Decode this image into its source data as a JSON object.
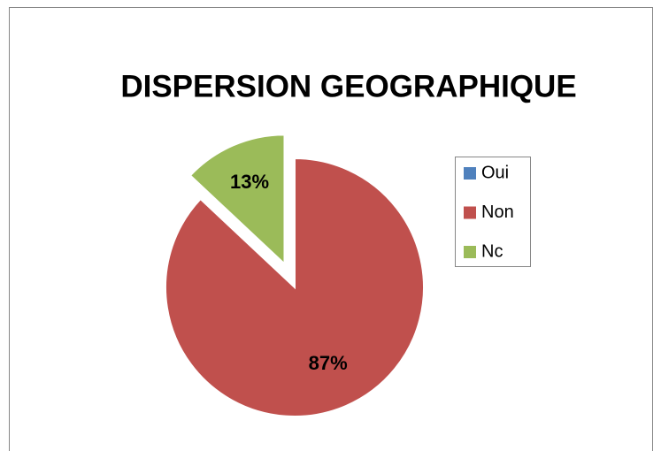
{
  "chart_data": {
    "type": "pie",
    "title": "DISPERSION GEOGRAPHIQUE",
    "categories": [
      "Oui",
      "Non",
      "Nc"
    ],
    "values": [
      0,
      87,
      13
    ],
    "value_labels": [
      null,
      "87%",
      "13%"
    ],
    "colors": [
      "#4f81bd",
      "#c0504d",
      "#9bbb59"
    ],
    "exploded": "Nc",
    "legend": "right"
  }
}
